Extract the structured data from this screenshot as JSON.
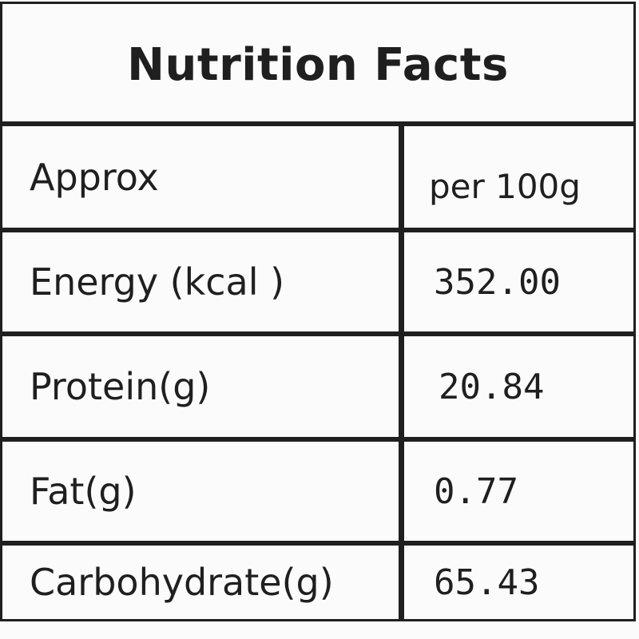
{
  "title": "Nutrition Facts",
  "header": {
    "label": "Approx",
    "value": "per 100g"
  },
  "rows": [
    {
      "label": "Energy (kcal )",
      "value": "352.00"
    },
    {
      "label": "Protein(g)",
      "value": "20.84"
    },
    {
      "label": "Fat(g)",
      "value": "0.77"
    },
    {
      "label": "Carbohydrate(g)",
      "value": "65.43"
    }
  ]
}
